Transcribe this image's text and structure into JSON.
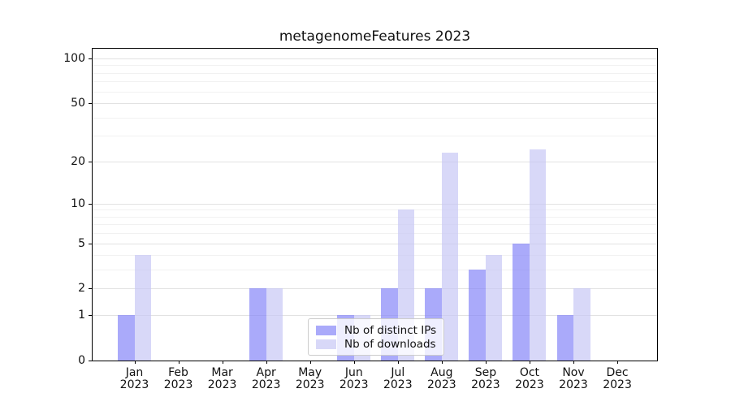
{
  "title": "metagenomeFeatures 2023",
  "legend": {
    "items": [
      {
        "label": "Nb of distinct IPs"
      },
      {
        "label": "Nb of downloads"
      }
    ]
  },
  "colors": {
    "ips_bar": "rgba(134,134,248,0.7)",
    "downloads_bar": "rgba(199,199,245,0.7)",
    "grid_major": "#e2e2e2",
    "grid_minor": "#f1f1f1",
    "axis": "#000000",
    "legend_border": "#cccccc",
    "legend_bg": "rgba(255,255,255,0.8)"
  },
  "chart_data": {
    "type": "bar",
    "title": "metagenomeFeatures 2023",
    "categories": [
      "Jan",
      "Feb",
      "Mar",
      "Apr",
      "May",
      "Jun",
      "Jul",
      "Aug",
      "Sep",
      "Oct",
      "Nov",
      "Dec"
    ],
    "year": "2023",
    "series": [
      {
        "name": "Nb of distinct IPs",
        "values": [
          1,
          0,
          0,
          2,
          0,
          1,
          2,
          2,
          3,
          5,
          1,
          0
        ]
      },
      {
        "name": "Nb of downloads",
        "values": [
          4,
          0,
          0,
          2,
          0,
          1,
          9,
          23,
          4,
          24,
          2,
          0
        ]
      }
    ],
    "yscale": "log1p",
    "ylim": [
      0,
      116
    ],
    "y_major_ticks": [
      0,
      1,
      2,
      5,
      10,
      20,
      50,
      100
    ],
    "y_minor_ticks": [
      3,
      4,
      6,
      7,
      8,
      9,
      30,
      40,
      60,
      70,
      80,
      90
    ],
    "grid": true,
    "legend_position": "lower center"
  }
}
